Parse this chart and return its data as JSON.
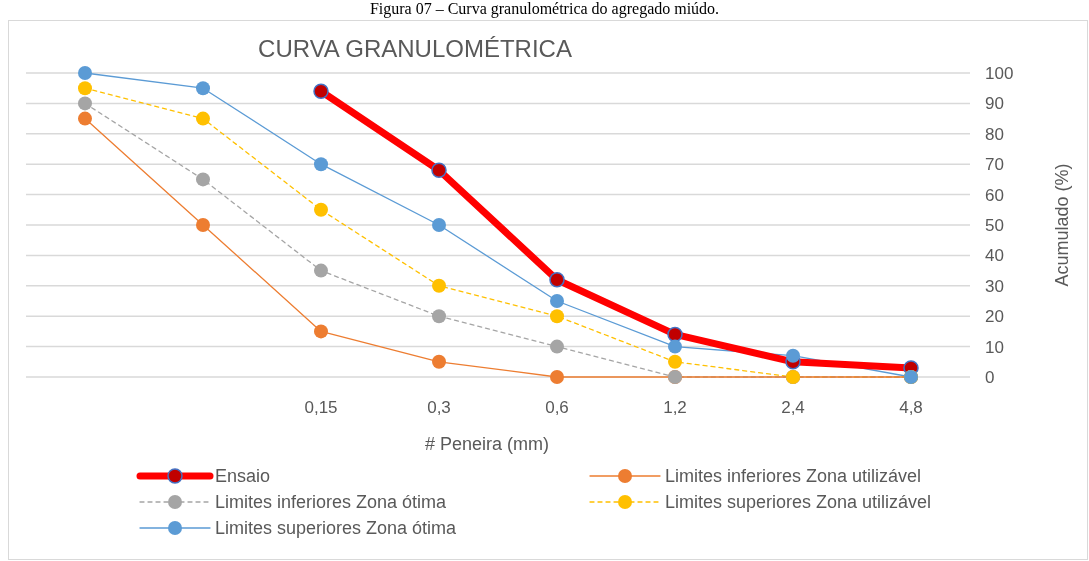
{
  "chart_data": {
    "type": "line",
    "title": "CURVA GRANULOMÉTRICA",
    "xlabel": "# Peneira (mm)",
    "ylabel": "Acumulado (%)",
    "annotations": [
      "Figura 07 – Curva granulométrica do agregado miúdo."
    ],
    "categories": [
      null,
      null,
      "0,15",
      "0,3",
      "0,6",
      "1,2",
      "2,4",
      "4,8"
    ],
    "ylim": [
      0,
      100
    ],
    "yticks": [
      0,
      10,
      20,
      30,
      40,
      50,
      60,
      70,
      80,
      90,
      100
    ],
    "grid": "y",
    "legend": "bottom",
    "marker": "circle",
    "series": [
      {
        "name": "Ensaio",
        "color": "#ff0000",
        "line_style": "solid",
        "values": [
          null,
          null,
          94,
          68,
          32,
          14,
          5,
          3
        ]
      },
      {
        "name": "Limites inferiores Zona utilizável",
        "color": "#ed7d31",
        "line_style": "solid",
        "values": [
          85,
          50,
          15,
          5,
          0,
          0,
          0,
          0
        ]
      },
      {
        "name": "Limites inferiores Zona ótima",
        "color": "#a5a5a5",
        "line_style": "dashed",
        "values": [
          90,
          65,
          35,
          20,
          10,
          0,
          0,
          0
        ]
      },
      {
        "name": "Limites superiores Zona utilizável",
        "color": "#ffc000",
        "line_style": "dashed",
        "values": [
          95,
          85,
          55,
          30,
          20,
          5,
          0,
          0
        ]
      },
      {
        "name": "Limites superiores Zona ótima",
        "color": "#5b9bd5",
        "line_style": "solid",
        "values": [
          100,
          95,
          70,
          50,
          25,
          10,
          7,
          0
        ]
      }
    ]
  }
}
